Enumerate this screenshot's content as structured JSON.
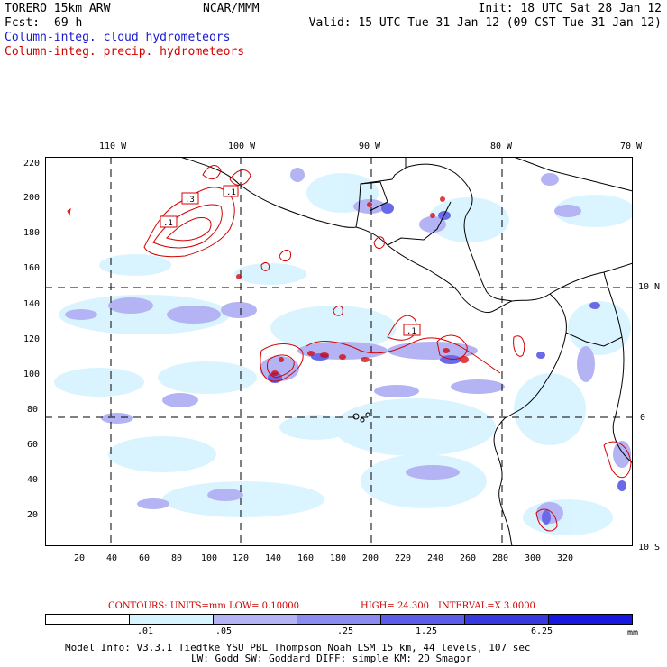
{
  "header": {
    "model": "TORERO  15km ARW",
    "org": "NCAR/MMM",
    "init": "Init: 18 UTC Sat 28 Jan 12",
    "fcst_label": "Fcst:",
    "fcst_value": "69 h",
    "valid": "Valid: 15 UTC Tue 31 Jan 12 (09 CST Tue 31 Jan 12)",
    "field_cloud": "Column-integ. cloud hydrometeors",
    "field_precip": "Column-integ. precip. hydrometeors"
  },
  "colors": {
    "cloud_label": "#1a1ad0",
    "precip_label": "#d40000",
    "shade_levels": [
      "#ffffff",
      "#d8f4ff",
      "#b4b4f4",
      "#8c8cf0",
      "#5c5ce8",
      "#3838e0",
      "#1818e0"
    ],
    "contour": "#d40000",
    "coast": "#000000"
  },
  "map": {
    "top_labels": [
      "110 W",
      "100 W",
      "90 W",
      "80 W",
      "70 W"
    ],
    "right_labels": [
      "10 N",
      "0",
      "10 S"
    ],
    "y_ticks": [
      "220",
      "200",
      "180",
      "160",
      "140",
      "120",
      "100",
      "80",
      "60",
      "40",
      "20"
    ],
    "x_ticks": [
      "20",
      "40",
      "60",
      "80",
      "100",
      "120",
      "140",
      "160",
      "180",
      "200",
      "220",
      "240",
      "260",
      "280",
      "300",
      "320"
    ],
    "contour_labels": [
      ".3",
      ".1",
      ".1",
      ".1"
    ]
  },
  "contours_line": {
    "units": "CONTOURS:  UNITS=mm  LOW= 0.10000",
    "high": "HIGH=  24.300",
    "interval": "INTERVAL=X  3.0000"
  },
  "legend": {
    "labels": [
      ".01",
      ".05",
      ".25",
      "1.25",
      "6.25"
    ],
    "unit": "mm"
  },
  "model_info": {
    "line1": "Model Info: V3.3.1   Tiedtke YSU PBL  Thompson    Noah LSM  15 km,   44 levels,  107 sec",
    "line2": "LW: Godd SW: Goddard DIFF: simple KM: 2D Smagor"
  }
}
